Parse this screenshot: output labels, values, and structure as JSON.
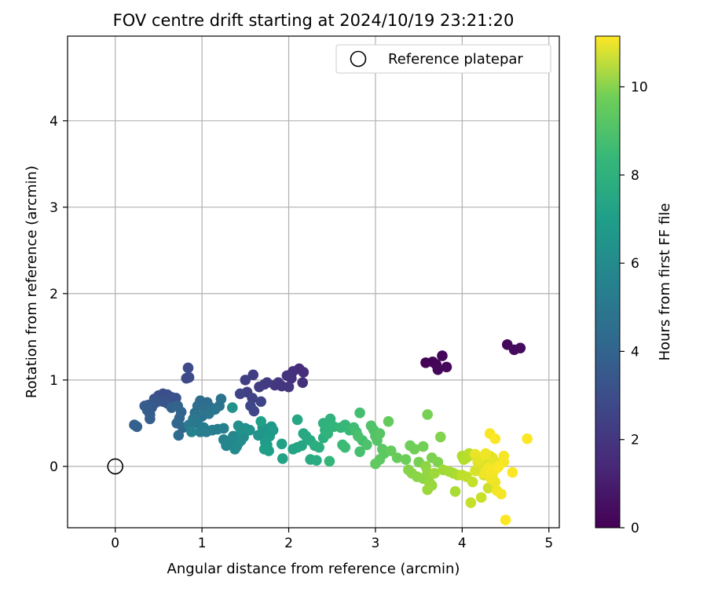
{
  "chart_data": {
    "type": "scatter",
    "title": "FOV centre drift starting at 2024/10/19 23:21:20",
    "xlabel": "Angular distance from reference (arcmin)",
    "ylabel": "Rotation from reference (arcmin)",
    "xlim": [
      -0.55,
      5.12
    ],
    "ylim": [
      -0.71,
      4.98
    ],
    "xticks": [
      0,
      1,
      2,
      3,
      4,
      5
    ],
    "yticks": [
      0,
      1,
      2,
      3,
      4
    ],
    "grid": true,
    "legend": {
      "position": "top-right",
      "entries": [
        "Reference platepar"
      ]
    },
    "colorbar": {
      "label": "Hours from first FF file",
      "range": [
        0,
        11.15
      ],
      "ticks": [
        0,
        2,
        4,
        6,
        8,
        10
      ],
      "colormap": "viridis"
    },
    "reference_point": {
      "name": "Reference platepar",
      "x": 0,
      "y": 0,
      "marker": "open-circle"
    },
    "series": [
      {
        "colored_by": "hours",
        "points": [
          [
            3.58,
            1.2,
            0.05
          ],
          [
            3.66,
            1.21,
            0.08
          ],
          [
            3.7,
            1.18,
            0.12
          ],
          [
            3.77,
            1.28,
            0.15
          ],
          [
            3.72,
            1.12,
            0.18
          ],
          [
            3.82,
            1.15,
            0.22
          ],
          [
            4.52,
            1.41,
            0.25
          ],
          [
            4.6,
            1.35,
            0.3
          ],
          [
            4.67,
            1.37,
            0.35
          ],
          [
            2.12,
            1.13,
            1.4
          ],
          [
            2.17,
            1.09,
            1.45
          ],
          [
            2.05,
            1.1,
            1.5
          ],
          [
            2.16,
            0.97,
            1.55
          ],
          [
            2.03,
            1.02,
            1.6
          ],
          [
            1.98,
            1.05,
            1.65
          ],
          [
            1.92,
            0.93,
            1.7
          ],
          [
            2.0,
            0.92,
            1.75
          ],
          [
            1.88,
            0.97,
            1.8
          ],
          [
            1.84,
            0.94,
            1.85
          ],
          [
            1.75,
            0.97,
            1.9
          ],
          [
            1.72,
            0.95,
            1.95
          ],
          [
            1.66,
            0.92,
            2.0
          ],
          [
            1.59,
            1.06,
            2.05
          ],
          [
            1.5,
            1.0,
            2.1
          ],
          [
            1.52,
            0.86,
            2.15
          ],
          [
            1.58,
            0.79,
            2.2
          ],
          [
            1.44,
            0.84,
            2.25
          ],
          [
            1.68,
            0.75,
            2.3
          ],
          [
            1.56,
            0.7,
            2.35
          ],
          [
            1.6,
            0.64,
            2.4
          ],
          [
            0.84,
            1.14,
            2.5
          ],
          [
            0.85,
            1.03,
            2.55
          ],
          [
            0.82,
            1.02,
            2.6
          ],
          [
            0.55,
            0.84,
            2.65
          ],
          [
            0.6,
            0.83,
            2.7
          ],
          [
            0.5,
            0.82,
            2.75
          ],
          [
            0.65,
            0.8,
            2.8
          ],
          [
            0.7,
            0.79,
            2.85
          ],
          [
            0.45,
            0.78,
            2.9
          ],
          [
            0.55,
            0.75,
            2.95
          ],
          [
            0.6,
            0.73,
            3.0
          ],
          [
            0.47,
            0.74,
            3.05
          ],
          [
            0.38,
            0.71,
            3.1
          ],
          [
            0.42,
            0.68,
            3.15
          ],
          [
            0.34,
            0.7,
            3.2
          ],
          [
            0.37,
            0.65,
            3.25
          ],
          [
            0.4,
            0.6,
            3.3
          ],
          [
            0.4,
            0.55,
            3.35
          ],
          [
            0.22,
            0.48,
            3.4
          ],
          [
            0.25,
            0.46,
            3.45
          ],
          [
            0.65,
            0.68,
            3.5
          ],
          [
            0.72,
            0.7,
            3.55
          ],
          [
            0.76,
            0.63,
            3.6
          ],
          [
            0.74,
            0.56,
            3.65
          ],
          [
            0.71,
            0.5,
            3.7
          ],
          [
            0.78,
            0.45,
            3.75
          ],
          [
            0.73,
            0.36,
            3.8
          ],
          [
            0.98,
            0.76,
            3.9
          ],
          [
            1.06,
            0.74,
            3.95
          ],
          [
            0.95,
            0.7,
            4.0
          ],
          [
            1.1,
            0.68,
            4.05
          ],
          [
            1.04,
            0.66,
            4.1
          ],
          [
            0.92,
            0.62,
            4.15
          ],
          [
            1.0,
            0.58,
            4.2
          ],
          [
            1.22,
            0.78,
            4.25
          ],
          [
            1.2,
            0.7,
            4.3
          ],
          [
            1.15,
            0.66,
            4.35
          ],
          [
            1.08,
            0.61,
            4.4
          ],
          [
            0.9,
            0.55,
            4.45
          ],
          [
            0.95,
            0.5,
            4.5
          ],
          [
            0.85,
            0.48,
            4.55
          ],
          [
            1.02,
            0.45,
            4.6
          ],
          [
            0.98,
            0.4,
            4.65
          ],
          [
            1.05,
            0.4,
            4.7
          ],
          [
            1.12,
            0.42,
            4.75
          ],
          [
            1.18,
            0.43,
            4.8
          ],
          [
            1.25,
            0.44,
            4.85
          ],
          [
            0.88,
            0.4,
            4.9
          ],
          [
            1.25,
            0.31,
            5.0
          ],
          [
            1.3,
            0.28,
            5.05
          ],
          [
            1.28,
            0.24,
            5.1
          ],
          [
            1.36,
            0.35,
            5.15
          ],
          [
            1.39,
            0.32,
            5.2
          ],
          [
            1.42,
            0.27,
            5.25
          ],
          [
            1.4,
            0.23,
            5.3
          ],
          [
            1.38,
            0.2,
            5.35
          ],
          [
            1.45,
            0.3,
            5.4
          ],
          [
            1.48,
            0.34,
            5.45
          ],
          [
            1.5,
            0.44,
            5.5
          ],
          [
            1.42,
            0.47,
            5.55
          ],
          [
            1.45,
            0.42,
            5.6
          ],
          [
            1.35,
            0.68,
            5.65
          ],
          [
            1.55,
            0.42,
            5.7
          ],
          [
            1.65,
            0.36,
            5.75
          ],
          [
            1.72,
            0.38,
            5.8
          ],
          [
            1.7,
            0.45,
            5.85
          ],
          [
            1.76,
            0.42,
            5.9
          ],
          [
            1.8,
            0.46,
            5.95
          ],
          [
            1.82,
            0.42,
            6.0
          ],
          [
            1.78,
            0.35,
            6.05
          ],
          [
            1.73,
            0.28,
            6.1
          ],
          [
            1.75,
            0.25,
            6.15
          ],
          [
            1.72,
            0.2,
            6.2
          ],
          [
            1.77,
            0.18,
            6.25
          ],
          [
            1.68,
            0.52,
            6.3
          ],
          [
            1.92,
            0.26,
            6.35
          ],
          [
            1.93,
            0.09,
            6.4
          ],
          [
            2.05,
            0.2,
            6.45
          ],
          [
            2.1,
            0.22,
            6.5
          ],
          [
            2.15,
            0.24,
            6.55
          ],
          [
            2.1,
            0.54,
            6.6
          ],
          [
            2.17,
            0.38,
            6.65
          ],
          [
            2.2,
            0.35,
            6.7
          ],
          [
            2.25,
            0.3,
            6.75
          ],
          [
            2.25,
            0.08,
            6.8
          ],
          [
            2.32,
            0.07,
            6.85
          ],
          [
            2.3,
            0.24,
            6.9
          ],
          [
            2.35,
            0.22,
            6.95
          ],
          [
            2.4,
            0.33,
            7.0
          ],
          [
            2.42,
            0.42,
            7.05
          ],
          [
            2.45,
            0.48,
            7.1
          ],
          [
            2.4,
            0.5,
            7.15
          ],
          [
            2.48,
            0.55,
            7.2
          ],
          [
            2.45,
            0.38,
            7.25
          ],
          [
            2.52,
            0.46,
            7.3
          ],
          [
            2.47,
            0.06,
            7.35
          ],
          [
            2.6,
            0.45,
            7.4
          ],
          [
            2.65,
            0.48,
            7.45
          ],
          [
            2.7,
            0.42,
            7.5
          ],
          [
            2.62,
            0.25,
            7.55
          ],
          [
            2.65,
            0.22,
            7.6
          ],
          [
            2.75,
            0.45,
            7.65
          ],
          [
            2.78,
            0.4,
            7.7
          ],
          [
            2.82,
            0.62,
            7.75
          ],
          [
            2.85,
            0.3,
            7.8
          ],
          [
            2.82,
            0.17,
            7.85
          ],
          [
            2.8,
            0.35,
            7.9
          ],
          [
            2.9,
            0.25,
            7.95
          ],
          [
            2.95,
            0.47,
            8.0
          ],
          [
            2.98,
            0.42,
            8.05
          ],
          [
            3.0,
            0.35,
            8.1
          ],
          [
            3.02,
            0.3,
            8.15
          ],
          [
            3.05,
            0.38,
            8.2
          ],
          [
            3.08,
            0.2,
            8.25
          ],
          [
            3.1,
            0.15,
            8.3
          ],
          [
            3.05,
            0.08,
            8.35
          ],
          [
            3.0,
            0.03,
            8.4
          ],
          [
            3.15,
            0.52,
            8.45
          ],
          [
            3.18,
            0.18,
            8.5
          ],
          [
            3.25,
            0.1,
            8.55
          ],
          [
            3.35,
            0.08,
            8.6
          ],
          [
            3.4,
            0.24,
            8.65
          ],
          [
            3.45,
            0.2,
            8.7
          ],
          [
            3.55,
            0.23,
            8.75
          ],
          [
            3.6,
            0.6,
            8.8
          ],
          [
            3.5,
            0.05,
            8.85
          ],
          [
            3.65,
            0.1,
            8.9
          ],
          [
            3.72,
            0.05,
            8.95
          ],
          [
            3.75,
            0.34,
            9.0
          ],
          [
            3.38,
            -0.04,
            9.05
          ],
          [
            3.42,
            -0.08,
            9.1
          ],
          [
            3.48,
            -0.12,
            9.15
          ],
          [
            3.55,
            -0.14,
            9.2
          ],
          [
            3.58,
            0.0,
            9.25
          ],
          [
            3.6,
            -0.07,
            9.3
          ],
          [
            3.62,
            -0.18,
            9.35
          ],
          [
            3.65,
            -0.22,
            9.4
          ],
          [
            3.6,
            -0.27,
            9.45
          ],
          [
            3.68,
            -0.08,
            9.5
          ],
          [
            3.78,
            -0.04,
            9.55
          ],
          [
            3.85,
            -0.06,
            9.6
          ],
          [
            3.9,
            -0.08,
            9.65
          ],
          [
            3.92,
            -0.29,
            9.7
          ],
          [
            3.95,
            -0.1,
            9.75
          ],
          [
            4.0,
            0.12,
            9.8
          ],
          [
            4.02,
            0.08,
            9.85
          ],
          [
            4.05,
            0.1,
            9.9
          ],
          [
            4.08,
            0.15,
            9.95
          ],
          [
            4.1,
            0.13,
            10.0
          ],
          [
            4.0,
            -0.1,
            10.05
          ],
          [
            4.05,
            -0.12,
            10.1
          ],
          [
            4.12,
            -0.18,
            10.15
          ],
          [
            4.1,
            -0.42,
            10.2
          ],
          [
            4.22,
            -0.36,
            10.25
          ],
          [
            4.3,
            -0.25,
            10.3
          ],
          [
            4.25,
            -0.1,
            10.35
          ],
          [
            4.2,
            -0.05,
            10.4
          ],
          [
            4.22,
            0.0,
            10.45
          ],
          [
            4.25,
            0.03,
            10.5
          ],
          [
            4.28,
            0.05,
            10.55
          ],
          [
            4.3,
            0.08,
            10.6
          ],
          [
            4.32,
            0.12,
            10.65
          ],
          [
            4.35,
            0.1,
            10.7
          ],
          [
            4.38,
            0.05,
            10.75
          ],
          [
            4.4,
            -0.02,
            10.8
          ],
          [
            4.35,
            -0.1,
            10.85
          ],
          [
            4.38,
            -0.18,
            10.9
          ],
          [
            4.4,
            -0.28,
            10.95
          ],
          [
            4.45,
            -0.32,
            11.0
          ],
          [
            4.48,
            0.05,
            11.02
          ],
          [
            4.48,
            0.12,
            11.05
          ],
          [
            4.32,
            0.38,
            11.07
          ],
          [
            4.38,
            0.32,
            11.1
          ],
          [
            4.75,
            0.32,
            11.12
          ],
          [
            4.58,
            -0.07,
            11.13
          ],
          [
            4.5,
            -0.62,
            11.15
          ],
          [
            4.2,
            0.1,
            11.0
          ],
          [
            4.15,
            0.14,
            10.8
          ],
          [
            4.27,
            0.15,
            10.95
          ],
          [
            4.18,
            0.05,
            10.7
          ],
          [
            4.24,
            -0.08,
            10.9
          ],
          [
            4.3,
            -0.02,
            11.0
          ],
          [
            4.36,
            -0.06,
            11.05
          ],
          [
            4.15,
            -0.05,
            10.5
          ],
          [
            4.33,
            -0.14,
            10.95
          ],
          [
            4.42,
            0.0,
            11.1
          ]
        ]
      }
    ]
  }
}
